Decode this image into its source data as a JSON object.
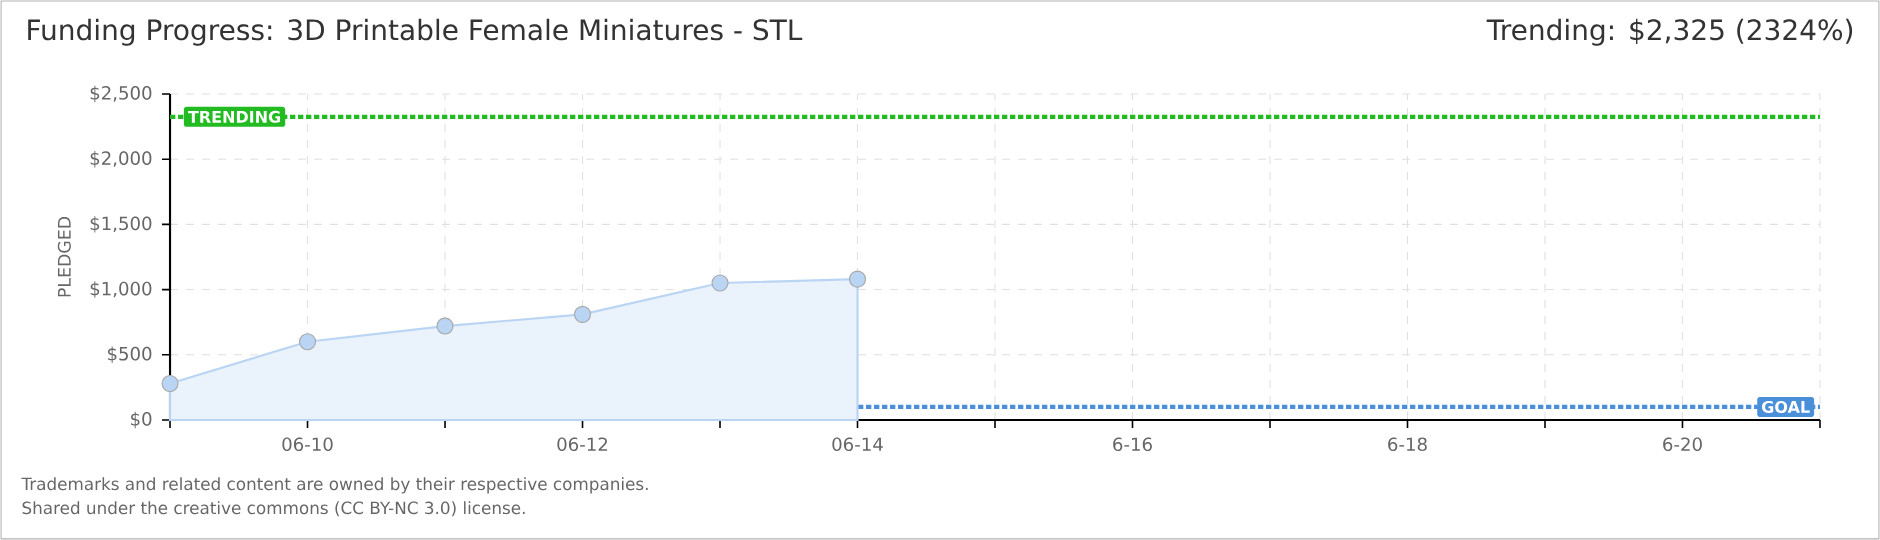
{
  "chart_data": {
    "type": "area",
    "title": "Funding Progress: 3D Printable Female Miniatures - STL",
    "subtitle": "Trending: $2,325 (2324%)",
    "ylabel": "PLEDGED",
    "annotations": [
      "Trademarks and related content are owned by their respective companies.",
      "Shared under the creative commons (CC BY-NC 3.0) license."
    ],
    "x": [
      "--06-09",
      "--06-10",
      "--06-11",
      "--06-12",
      "--06-13",
      "--06-14"
    ],
    "values": [
      280,
      600,
      720,
      810,
      1050,
      1080
    ],
    "color": "#b9d5f3",
    "marker": "circle",
    "grid": true,
    "xlim": [
      "--06-09",
      "--06-21"
    ],
    "xticks": [
      {
        "value": "--06-09",
        "label": null
      },
      {
        "value": "--06-10",
        "label": "06-10"
      },
      {
        "value": "--06-11",
        "label": null
      },
      {
        "value": "--06-12",
        "label": "06-12"
      },
      {
        "value": "--06-13",
        "label": null
      },
      {
        "value": "--06-14",
        "label": "06-14"
      },
      {
        "value": "--06-15",
        "label": null
      },
      {
        "value": "--06-16",
        "label": "6-16"
      },
      {
        "value": "--06-17",
        "label": null
      },
      {
        "value": "--06-18",
        "label": "6-18"
      },
      {
        "value": "--06-19",
        "label": null
      },
      {
        "value": "--06-20",
        "label": "6-20"
      },
      {
        "value": "--06-21",
        "label": null
      }
    ],
    "ylim": [
      0,
      2500
    ],
    "yticks": [
      {
        "value": 0,
        "label": "$0"
      },
      {
        "value": 500,
        "label": "$500"
      },
      {
        "value": 1000,
        "label": "$1,000"
      },
      {
        "value": 1500,
        "label": "$1,500"
      },
      {
        "value": 2000,
        "label": "$2,000"
      },
      {
        "value": 2500,
        "label": "$2,500"
      }
    ],
    "ref_lines": [
      {
        "axis": "y",
        "value": 2325,
        "label": "TRENDING",
        "color": "#22bb22",
        "line_style": "dotted"
      },
      {
        "axis": "y",
        "value": 100,
        "label": "GOAL",
        "color": "#4a8fd9",
        "line_style": "dotted"
      }
    ]
  }
}
